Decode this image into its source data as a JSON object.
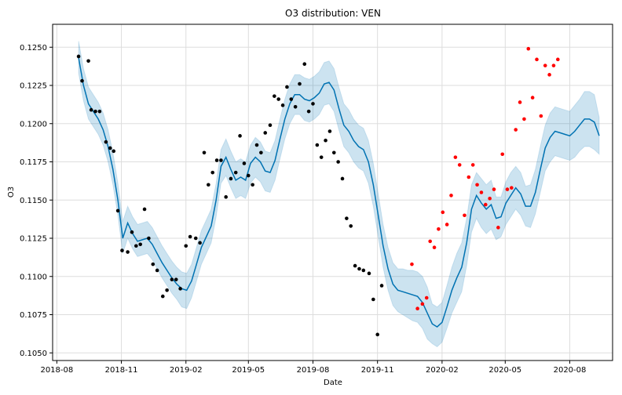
{
  "chart_data": {
    "type": "line",
    "title": "O3 distribution: VEN",
    "xlabel": "Date",
    "ylabel": "O3",
    "xlim": [
      "2018-07-26",
      "2020-10-01"
    ],
    "ylim": [
      0.1045,
      0.1265
    ],
    "x_ticks": [
      "2018-08",
      "2018-11",
      "2019-02",
      "2019-05",
      "2019-08",
      "2019-11",
      "2020-02",
      "2020-05",
      "2020-08"
    ],
    "y_ticks": [
      "0.1050",
      "0.1075",
      "0.1100",
      "0.1125",
      "0.1150",
      "0.1175",
      "0.1200",
      "0.1225",
      "0.1250"
    ],
    "grid": true,
    "colors": {
      "forecast_line": "#0072B2",
      "uncertainty_band": "#0072B2",
      "observed_points": "#000000",
      "holdout_points": "#ff0000"
    },
    "series": [
      {
        "kind": "forecast",
        "x": [
          "2018-09-01",
          "2018-09-08",
          "2018-09-15",
          "2018-09-22",
          "2018-09-29",
          "2018-10-06",
          "2018-10-13",
          "2018-10-20",
          "2018-10-27",
          "2018-11-03",
          "2018-11-10",
          "2018-11-17",
          "2018-11-24",
          "2018-12-01",
          "2018-12-08",
          "2018-12-15",
          "2018-12-22",
          "2018-12-29",
          "2019-01-05",
          "2019-01-12",
          "2019-01-19",
          "2019-01-26",
          "2019-02-02",
          "2019-02-09",
          "2019-02-16",
          "2019-02-23",
          "2019-03-02",
          "2019-03-09",
          "2019-03-16",
          "2019-03-23",
          "2019-03-30",
          "2019-04-06",
          "2019-04-13",
          "2019-04-20",
          "2019-04-27",
          "2019-05-04",
          "2019-05-11",
          "2019-05-18",
          "2019-05-25",
          "2019-06-01",
          "2019-06-08",
          "2019-06-15",
          "2019-06-22",
          "2019-06-29",
          "2019-07-06",
          "2019-07-13",
          "2019-07-20",
          "2019-07-27",
          "2019-08-03",
          "2019-08-10",
          "2019-08-17",
          "2019-08-24",
          "2019-08-31",
          "2019-09-07",
          "2019-09-14",
          "2019-09-21",
          "2019-09-28",
          "2019-10-05",
          "2019-10-12",
          "2019-10-19",
          "2019-10-26",
          "2019-11-02",
          "2019-11-09",
          "2019-11-16",
          "2019-11-23",
          "2019-11-30",
          "2019-12-07",
          "2019-12-14",
          "2019-12-21",
          "2019-12-28",
          "2020-01-04",
          "2020-01-11",
          "2020-01-18",
          "2020-01-25",
          "2020-02-01",
          "2020-02-08",
          "2020-02-15",
          "2020-02-22",
          "2020-02-29",
          "2020-03-07",
          "2020-03-14",
          "2020-03-21",
          "2020-03-28",
          "2020-04-04",
          "2020-04-11",
          "2020-04-18",
          "2020-04-25",
          "2020-05-02",
          "2020-05-09",
          "2020-05-16",
          "2020-05-23",
          "2020-05-30",
          "2020-06-06",
          "2020-06-13",
          "2020-06-20",
          "2020-06-27",
          "2020-07-04",
          "2020-07-11",
          "2020-07-18",
          "2020-07-25",
          "2020-08-01",
          "2020-08-08",
          "2020-08-15",
          "2020-08-22",
          "2020-08-29",
          "2020-09-05",
          "2020-09-12"
        ],
        "yhat": [
          0.1243,
          0.1225,
          0.1213,
          0.1208,
          0.1203,
          0.1196,
          0.1185,
          0.117,
          0.115,
          0.1125,
          0.1135,
          0.1128,
          0.1123,
          0.1124,
          0.1125,
          0.1121,
          0.1115,
          0.1109,
          0.1104,
          0.1099,
          0.1095,
          0.1092,
          0.1091,
          0.1097,
          0.1108,
          0.1119,
          0.1126,
          0.1133,
          0.115,
          0.1172,
          0.1178,
          0.117,
          0.1163,
          0.1165,
          0.1163,
          0.1174,
          0.1178,
          0.1175,
          0.1169,
          0.1168,
          0.1176,
          0.119,
          0.1203,
          0.1213,
          0.1219,
          0.1219,
          0.1216,
          0.1215,
          0.1217,
          0.122,
          0.1226,
          0.1227,
          0.1222,
          0.121,
          0.1199,
          0.1195,
          0.1189,
          0.1185,
          0.1183,
          0.1175,
          0.116,
          0.114,
          0.112,
          0.1105,
          0.1095,
          0.1091,
          0.109,
          0.1089,
          0.1088,
          0.1087,
          0.1083,
          0.1076,
          0.1069,
          0.1067,
          0.107,
          0.108,
          0.1091,
          0.1099,
          0.1106,
          0.1122,
          0.1144,
          0.1153,
          0.1148,
          0.1144,
          0.1147,
          0.1138,
          0.1139,
          0.1148,
          0.1153,
          0.1158,
          0.1154,
          0.1146,
          0.1146,
          0.1155,
          0.117,
          0.1184,
          0.1191,
          0.1195,
          0.1194,
          0.1193,
          0.1192,
          0.1195,
          0.1199,
          0.1203,
          0.1203,
          0.1201,
          0.1192
        ],
        "yhat_lower": [
          0.1233,
          0.1215,
          0.1203,
          0.1198,
          0.1193,
          0.1186,
          0.1175,
          0.116,
          0.114,
          0.1115,
          0.1125,
          0.1118,
          0.1113,
          0.1114,
          0.1115,
          0.1111,
          0.1105,
          0.1099,
          0.1094,
          0.1089,
          0.1085,
          0.108,
          0.1079,
          0.1086,
          0.1097,
          0.1108,
          0.1115,
          0.1122,
          0.1139,
          0.1161,
          0.1166,
          0.1158,
          0.1151,
          0.1153,
          0.1151,
          0.1161,
          0.1165,
          0.1162,
          0.1156,
          0.1155,
          0.1163,
          0.1177,
          0.119,
          0.12,
          0.1206,
          0.1206,
          0.1202,
          0.1201,
          0.1203,
          0.1206,
          0.1212,
          0.1213,
          0.1208,
          0.1196,
          0.1185,
          0.1181,
          0.1175,
          0.1171,
          0.1169,
          0.1161,
          0.1146,
          0.1126,
          0.1106,
          0.1091,
          0.1081,
          0.1077,
          0.1075,
          0.1073,
          0.1071,
          0.107,
          0.1066,
          0.1059,
          0.1056,
          0.1054,
          0.1057,
          0.1066,
          0.1076,
          0.1083,
          0.109,
          0.1107,
          0.1129,
          0.1138,
          0.1132,
          0.1128,
          0.1131,
          0.1124,
          0.1126,
          0.1134,
          0.1139,
          0.1144,
          0.114,
          0.1133,
          0.1132,
          0.1141,
          0.1155,
          0.1169,
          0.1175,
          0.1179,
          0.1178,
          0.1177,
          0.1176,
          0.1178,
          0.1182,
          0.1185,
          0.1185,
          0.1183,
          0.118
        ],
        "yhat_upper": [
          0.1254,
          0.1236,
          0.1224,
          0.1219,
          0.1214,
          0.1207,
          0.1196,
          0.1181,
          0.1161,
          0.1136,
          0.1146,
          0.1139,
          0.1134,
          0.1135,
          0.1136,
          0.1132,
          0.1126,
          0.112,
          0.1115,
          0.111,
          0.1106,
          0.1103,
          0.1102,
          0.1108,
          0.1119,
          0.113,
          0.1137,
          0.1144,
          0.1161,
          0.1183,
          0.119,
          0.1182,
          0.1175,
          0.1177,
          0.1175,
          0.1186,
          0.1191,
          0.1188,
          0.1182,
          0.1181,
          0.1189,
          0.1203,
          0.1216,
          0.1226,
          0.1232,
          0.1232,
          0.123,
          0.1229,
          0.1231,
          0.1234,
          0.124,
          0.1241,
          0.1236,
          0.1224,
          0.1213,
          0.1209,
          0.1203,
          0.1199,
          0.1197,
          0.1189,
          0.1174,
          0.1154,
          0.1134,
          0.1119,
          0.1109,
          0.1105,
          0.1105,
          0.1104,
          0.1104,
          0.1103,
          0.11,
          0.1093,
          0.1082,
          0.108,
          0.1083,
          0.1094,
          0.1106,
          0.1115,
          0.1122,
          0.1138,
          0.116,
          0.1168,
          0.1164,
          0.116,
          0.1163,
          0.1152,
          0.1152,
          0.1162,
          0.1168,
          0.1172,
          0.1168,
          0.1159,
          0.116,
          0.117,
          0.1185,
          0.1199,
          0.1207,
          0.1211,
          0.121,
          0.1209,
          0.1208,
          0.1212,
          0.1216,
          0.1221,
          0.1221,
          0.1219,
          0.1204
        ]
      },
      {
        "kind": "observed",
        "points": [
          [
            "2018-09-01",
            0.1244
          ],
          [
            "2018-09-06",
            0.1228
          ],
          [
            "2018-09-15",
            0.1241
          ],
          [
            "2018-09-19",
            0.1209
          ],
          [
            "2018-09-25",
            0.1208
          ],
          [
            "2018-10-01",
            0.1208
          ],
          [
            "2018-10-10",
            0.1188
          ],
          [
            "2018-10-16",
            0.1184
          ],
          [
            "2018-10-21",
            0.1182
          ],
          [
            "2018-10-27",
            0.1143
          ],
          [
            "2018-11-02",
            0.1117
          ],
          [
            "2018-11-10",
            0.1116
          ],
          [
            "2018-11-16",
            0.1129
          ],
          [
            "2018-11-22",
            0.112
          ],
          [
            "2018-11-28",
            0.1121
          ],
          [
            "2018-12-04",
            0.1144
          ],
          [
            "2018-12-10",
            0.1125
          ],
          [
            "2018-12-16",
            0.1108
          ],
          [
            "2018-12-22",
            0.1104
          ],
          [
            "2018-12-30",
            0.1087
          ],
          [
            "2019-01-05",
            0.1091
          ],
          [
            "2019-01-12",
            0.1098
          ],
          [
            "2019-01-18",
            0.1098
          ],
          [
            "2019-01-24",
            0.1092
          ],
          [
            "2019-02-01",
            0.112
          ],
          [
            "2019-02-07",
            0.1126
          ],
          [
            "2019-02-15",
            0.1125
          ],
          [
            "2019-02-21",
            0.1122
          ],
          [
            "2019-02-27",
            0.1181
          ],
          [
            "2019-03-05",
            0.116
          ],
          [
            "2019-03-11",
            0.1168
          ],
          [
            "2019-03-17",
            0.1176
          ],
          [
            "2019-03-23",
            0.1176
          ],
          [
            "2019-03-30",
            0.1152
          ],
          [
            "2019-04-06",
            0.1164
          ],
          [
            "2019-04-13",
            0.1168
          ],
          [
            "2019-04-19",
            0.1192
          ],
          [
            "2019-04-25",
            0.1174
          ],
          [
            "2019-05-01",
            0.1166
          ],
          [
            "2019-05-07",
            0.116
          ],
          [
            "2019-05-13",
            0.1186
          ],
          [
            "2019-05-19",
            0.1181
          ],
          [
            "2019-05-25",
            0.1194
          ],
          [
            "2019-06-01",
            0.1199
          ],
          [
            "2019-06-07",
            0.1218
          ],
          [
            "2019-06-13",
            0.1216
          ],
          [
            "2019-06-19",
            0.1212
          ],
          [
            "2019-06-25",
            0.1224
          ],
          [
            "2019-07-01",
            0.1216
          ],
          [
            "2019-07-07",
            0.1211
          ],
          [
            "2019-07-13",
            0.1226
          ],
          [
            "2019-07-20",
            0.1239
          ],
          [
            "2019-07-26",
            0.1208
          ],
          [
            "2019-08-01",
            0.1213
          ],
          [
            "2019-08-07",
            0.1186
          ],
          [
            "2019-08-13",
            0.1178
          ],
          [
            "2019-08-19",
            0.1189
          ],
          [
            "2019-08-25",
            0.1195
          ],
          [
            "2019-08-31",
            0.1181
          ],
          [
            "2019-09-06",
            0.1175
          ],
          [
            "2019-09-12",
            0.1164
          ],
          [
            "2019-09-18",
            0.1138
          ],
          [
            "2019-09-24",
            0.1133
          ],
          [
            "2019-09-30",
            0.1107
          ],
          [
            "2019-10-06",
            0.1105
          ],
          [
            "2019-10-12",
            0.1104
          ],
          [
            "2019-10-20",
            0.1102
          ],
          [
            "2019-10-26",
            0.1085
          ],
          [
            "2019-11-01",
            0.1062
          ],
          [
            "2019-11-07",
            0.1094
          ]
        ]
      },
      {
        "kind": "holdout",
        "points": [
          [
            "2019-12-20",
            0.1108
          ],
          [
            "2019-12-28",
            0.1079
          ],
          [
            "2020-01-04",
            0.1082
          ],
          [
            "2020-01-10",
            0.1086
          ],
          [
            "2020-01-15",
            0.1123
          ],
          [
            "2020-01-21",
            0.1119
          ],
          [
            "2020-01-27",
            0.1131
          ],
          [
            "2020-02-02",
            0.1142
          ],
          [
            "2020-02-08",
            0.1134
          ],
          [
            "2020-02-14",
            0.1153
          ],
          [
            "2020-02-20",
            0.1178
          ],
          [
            "2020-02-26",
            0.1173
          ],
          [
            "2020-03-04",
            0.114
          ],
          [
            "2020-03-10",
            0.1165
          ],
          [
            "2020-03-16",
            0.1173
          ],
          [
            "2020-03-22",
            0.116
          ],
          [
            "2020-03-28",
            0.1155
          ],
          [
            "2020-04-03",
            0.1147
          ],
          [
            "2020-04-09",
            0.1151
          ],
          [
            "2020-04-15",
            0.1157
          ],
          [
            "2020-04-21",
            0.1132
          ],
          [
            "2020-04-27",
            0.118
          ],
          [
            "2020-05-04",
            0.1157
          ],
          [
            "2020-05-10",
            0.1158
          ],
          [
            "2020-05-16",
            0.1196
          ],
          [
            "2020-05-22",
            0.1214
          ],
          [
            "2020-05-28",
            0.1203
          ],
          [
            "2020-06-03",
            0.1249
          ],
          [
            "2020-06-09",
            0.1217
          ],
          [
            "2020-06-15",
            0.1242
          ],
          [
            "2020-06-21",
            0.1205
          ],
          [
            "2020-06-27",
            0.1238
          ],
          [
            "2020-07-03",
            0.1232
          ],
          [
            "2020-07-09",
            0.1238
          ],
          [
            "2020-07-15",
            0.1242
          ]
        ]
      }
    ]
  }
}
